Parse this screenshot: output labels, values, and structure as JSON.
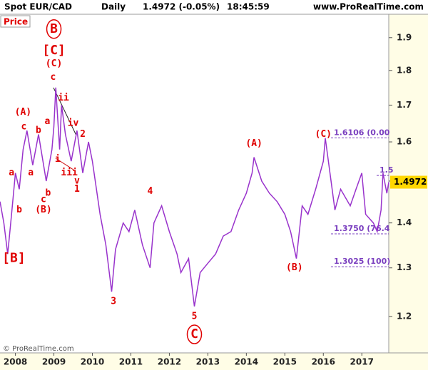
{
  "chart_data": {
    "type": "line",
    "header": {
      "symbol": "Spot EUR/CAD",
      "period": "Daily",
      "quote": "1.4972 (-0.05%)",
      "time": "18:45:59",
      "site": "www.ProRealTime.com"
    },
    "panel_label": "Price",
    "footer": "© ProRealTime.com",
    "log_scale": true,
    "xlim": [
      2007.6,
      2017.7
    ],
    "ylim": [
      1.13,
      1.97
    ],
    "xticks": [
      2008,
      2009,
      2010,
      2011,
      2012,
      2013,
      2014,
      2015,
      2016,
      2017
    ],
    "yticks": [
      1.2,
      1.3,
      1.4,
      1.5,
      1.6,
      1.7,
      1.8,
      1.9
    ],
    "series": [
      {
        "name": "Price",
        "color": "#9933cc",
        "x": [
          2007.6,
          2007.7,
          2007.8,
          2007.9,
          2008.0,
          2008.1,
          2008.2,
          2008.3,
          2008.45,
          2008.6,
          2008.8,
          2008.95,
          2009.0,
          2009.05,
          2009.15,
          2009.2,
          2009.3,
          2009.45,
          2009.6,
          2009.75,
          2009.9,
          2010.0,
          2010.2,
          2010.35,
          2010.5,
          2010.6,
          2010.8,
          2010.95,
          2011.1,
          2011.3,
          2011.5,
          2011.6,
          2011.8,
          2012.0,
          2012.2,
          2012.3,
          2012.5,
          2012.65,
          2012.8,
          2013.0,
          2013.2,
          2013.4,
          2013.6,
          2013.8,
          2014.0,
          2014.15,
          2014.2,
          2014.4,
          2014.6,
          2014.8,
          2015.0,
          2015.15,
          2015.3,
          2015.45,
          2015.6,
          2015.8,
          2016.0,
          2016.05,
          2016.2,
          2016.3,
          2016.45,
          2016.7,
          2016.85,
          2017.0,
          2017.1,
          2017.3,
          2017.4,
          2017.5,
          2017.55,
          2017.65,
          2017.7
        ],
        "values": [
          1.45,
          1.4,
          1.33,
          1.42,
          1.52,
          1.48,
          1.58,
          1.63,
          1.54,
          1.62,
          1.5,
          1.58,
          1.64,
          1.75,
          1.58,
          1.7,
          1.62,
          1.55,
          1.63,
          1.52,
          1.6,
          1.55,
          1.42,
          1.35,
          1.25,
          1.34,
          1.4,
          1.38,
          1.43,
          1.35,
          1.3,
          1.4,
          1.44,
          1.38,
          1.33,
          1.29,
          1.32,
          1.22,
          1.29,
          1.31,
          1.33,
          1.37,
          1.38,
          1.43,
          1.47,
          1.52,
          1.56,
          1.5,
          1.47,
          1.45,
          1.42,
          1.38,
          1.32,
          1.44,
          1.42,
          1.48,
          1.55,
          1.61,
          1.5,
          1.43,
          1.48,
          1.44,
          1.48,
          1.52,
          1.42,
          1.4,
          1.38,
          1.43,
          1.52,
          1.47,
          1.4972
        ]
      }
    ],
    "last_value": 1.4972,
    "fib_levels": [
      {
        "value": 1.6106,
        "label": "1.6106 (0.00"
      },
      {
        "value": 1.5138,
        "label": "1.5"
      },
      {
        "value": 1.375,
        "label": "1.3750 (76.4"
      },
      {
        "value": 1.3025,
        "label": "1.3025 (100)"
      }
    ],
    "annotations": [
      {
        "text": "B",
        "x": 2009.0,
        "y": 1.927,
        "circled": true
      },
      {
        "text": "[C]",
        "x": 2009.0,
        "y": 1.86
      },
      {
        "text": "(C)",
        "x": 2009.0,
        "y": 1.82
      },
      {
        "text": "c",
        "x": 2008.98,
        "y": 1.78
      },
      {
        "text": "ii",
        "x": 2009.25,
        "y": 1.72
      },
      {
        "text": "iv",
        "x": 2009.5,
        "y": 1.65
      },
      {
        "text": "2",
        "x": 2009.75,
        "y": 1.62
      },
      {
        "text": "(A)",
        "x": 2008.2,
        "y": 1.68
      },
      {
        "text": "c",
        "x": 2008.22,
        "y": 1.64
      },
      {
        "text": "b",
        "x": 2008.6,
        "y": 1.63
      },
      {
        "text": "a",
        "x": 2008.83,
        "y": 1.655
      },
      {
        "text": "a",
        "x": 2007.9,
        "y": 1.52
      },
      {
        "text": "a",
        "x": 2008.4,
        "y": 1.52
      },
      {
        "text": "b",
        "x": 2008.1,
        "y": 1.43
      },
      {
        "text": "b",
        "x": 2008.85,
        "y": 1.47
      },
      {
        "text": "c",
        "x": 2008.73,
        "y": 1.455
      },
      {
        "text": "(B)",
        "x": 2008.73,
        "y": 1.43
      },
      {
        "text": "i",
        "x": 2009.1,
        "y": 1.555
      },
      {
        "text": "iii",
        "x": 2009.4,
        "y": 1.52
      },
      {
        "text": "v",
        "x": 2009.6,
        "y": 1.5
      },
      {
        "text": "1",
        "x": 2009.6,
        "y": 1.48
      },
      {
        "text": "[B]",
        "x": 2007.96,
        "y": 1.32
      },
      {
        "text": "3",
        "x": 2010.55,
        "y": 1.23
      },
      {
        "text": "4",
        "x": 2011.5,
        "y": 1.475
      },
      {
        "text": "5",
        "x": 2012.65,
        "y": 1.2
      },
      {
        "text": "C",
        "x": 2012.65,
        "y": 1.165,
        "circled": true
      },
      {
        "text": "(A)",
        "x": 2014.2,
        "y": 1.595
      },
      {
        "text": "(B)",
        "x": 2015.25,
        "y": 1.3
      },
      {
        "text": "(C)",
        "x": 2016.0,
        "y": 1.62
      }
    ]
  }
}
